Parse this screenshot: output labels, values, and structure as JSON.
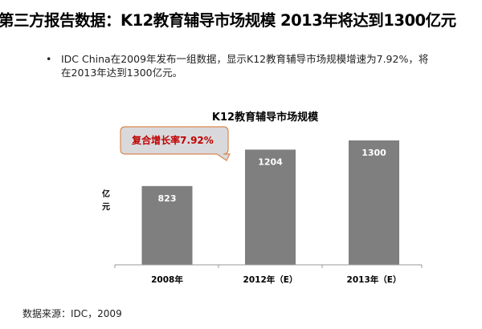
{
  "slide": {
    "title": "第三方报告数据：K12教育辅导市场规模 2013年将达到1300亿元",
    "bullet": "IDC China在2009年发布一组数据，显示K12教育辅导市场规模增速为7.92%，将在2013年达到1300亿元。",
    "bullet_symbol": "•",
    "source": "数据来源：IDC，2009"
  },
  "chart_data": {
    "type": "bar",
    "title": "K12教育辅导市场规模",
    "categories": [
      "2008年",
      "2012年（E）",
      "2013年（E）"
    ],
    "values": [
      823,
      1204,
      1300
    ],
    "data_labels": [
      "823",
      "1204",
      "1300"
    ],
    "ylabel": "亿元",
    "ylabel_chars": [
      "亿",
      "元"
    ],
    "ylim": [
      0,
      1400
    ],
    "grid": false,
    "bar_color": "#7f7f7f",
    "annotation": {
      "text": "复合增长率7.92%",
      "color": "#c00000",
      "border": "#d9884f",
      "fill": "#d9d9dc"
    }
  }
}
